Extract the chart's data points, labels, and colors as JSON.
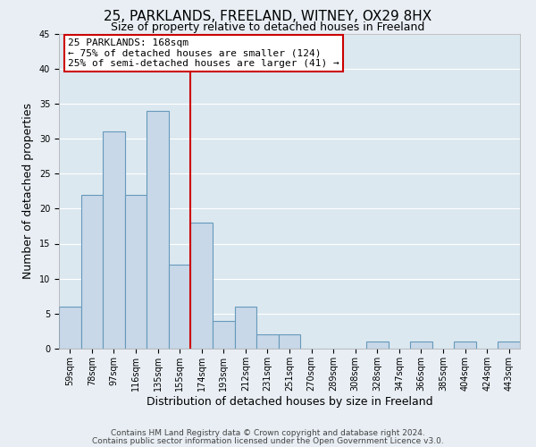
{
  "title": "25, PARKLANDS, FREELAND, WITNEY, OX29 8HX",
  "subtitle": "Size of property relative to detached houses in Freeland",
  "xlabel": "Distribution of detached houses by size in Freeland",
  "ylabel": "Number of detached properties",
  "bin_labels": [
    "59sqm",
    "78sqm",
    "97sqm",
    "116sqm",
    "135sqm",
    "155sqm",
    "174sqm",
    "193sqm",
    "212sqm",
    "231sqm",
    "251sqm",
    "270sqm",
    "289sqm",
    "308sqm",
    "328sqm",
    "347sqm",
    "366sqm",
    "385sqm",
    "404sqm",
    "424sqm",
    "443sqm"
  ],
  "bar_values": [
    6,
    22,
    31,
    22,
    34,
    12,
    18,
    4,
    6,
    2,
    2,
    0,
    0,
    0,
    1,
    0,
    1,
    0,
    1,
    0,
    1
  ],
  "bar_color": "#c8d8e8",
  "bar_edge_color": "#6699bb",
  "bar_width": 1.0,
  "vline_x": 5.5,
  "vline_color": "#cc0000",
  "annotation_text": "25 PARKLANDS: 168sqm\n← 75% of detached houses are smaller (124)\n25% of semi-detached houses are larger (41) →",
  "annotation_box_color": "#ffffff",
  "annotation_box_edge": "#cc0000",
  "ylim": [
    0,
    45
  ],
  "yticks": [
    0,
    5,
    10,
    15,
    20,
    25,
    30,
    35,
    40,
    45
  ],
  "footer1": "Contains HM Land Registry data © Crown copyright and database right 2024.",
  "footer2": "Contains public sector information licensed under the Open Government Licence v3.0.",
  "bg_color": "#e8eef4",
  "plot_bg_color": "#dce8f0",
  "title_fontsize": 11,
  "subtitle_fontsize": 9,
  "axis_label_fontsize": 9,
  "tick_fontsize": 7,
  "annotation_fontsize": 8,
  "footer_fontsize": 6.5
}
